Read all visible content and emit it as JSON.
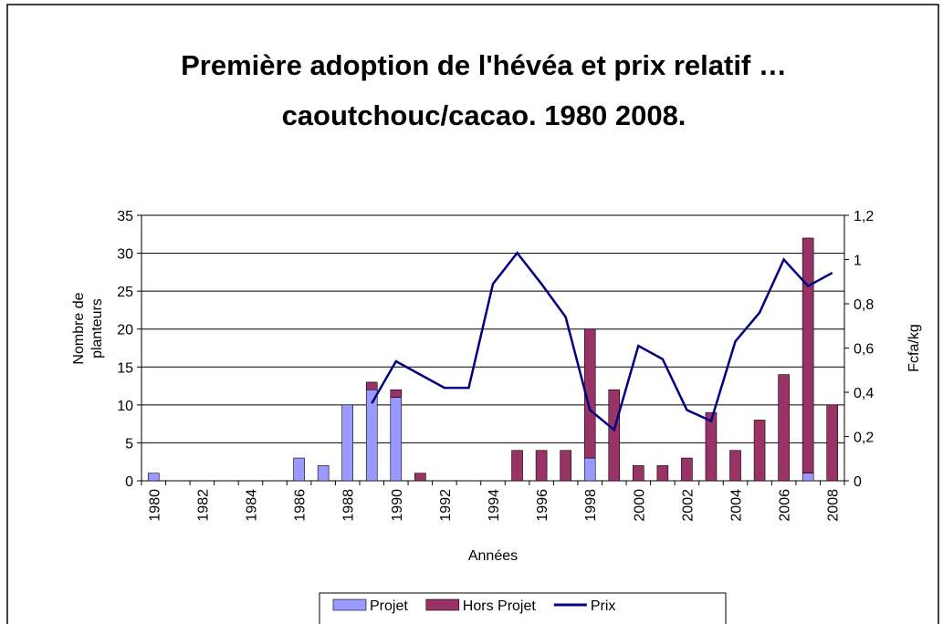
{
  "chart_data": {
    "type": "bar",
    "title": "Première adoption de l'hévéa et prix relatif … caoutchouc/cacao. 1980 2008.",
    "x_label": "Années",
    "y_label": "Nombre de planteurs",
    "y2_label": "Fcfa/kg",
    "categories": [
      1980,
      null,
      1982,
      null,
      1984,
      null,
      1986,
      null,
      1988,
      null,
      1990,
      null,
      1992,
      null,
      1994,
      null,
      1996,
      null,
      1998,
      null,
      2000,
      null,
      2002,
      null,
      2004,
      null,
      2006,
      null,
      2008
    ],
    "series": [
      {
        "name": "Projet",
        "color": "#9999ff",
        "values": [
          1,
          0,
          0,
          0,
          0,
          0,
          3,
          2,
          10,
          12,
          11,
          0,
          0,
          0,
          0,
          0,
          0,
          0,
          3,
          0,
          0,
          0,
          0,
          0,
          0,
          0,
          0,
          1,
          0
        ]
      },
      {
        "name": "Hors Projet",
        "color": "#993366",
        "values": [
          0,
          0,
          0,
          0,
          0,
          0,
          0,
          0,
          0,
          1,
          1,
          1,
          0,
          0,
          0,
          4,
          4,
          4,
          17,
          12,
          2,
          2,
          3,
          9,
          4,
          8,
          14,
          31,
          10
        ]
      },
      {
        "name": "Prix",
        "type": "line",
        "axis": "y2",
        "color": "#000080",
        "values": [
          null,
          null,
          null,
          null,
          null,
          null,
          null,
          null,
          null,
          0.35,
          0.54,
          0.48,
          0.42,
          0.42,
          0.89,
          1.03,
          0.89,
          0.74,
          0.32,
          0.23,
          0.61,
          0.55,
          0.32,
          0.27,
          0.63,
          0.76,
          1.0,
          0.88,
          0.94
        ]
      }
    ],
    "ylim": [
      0,
      35
    ],
    "yticks": [
      0,
      5,
      10,
      15,
      20,
      25,
      30,
      35
    ],
    "y2lim": [
      0,
      1.2
    ],
    "y2ticks": [
      0,
      {
        "value": 0.2,
        "label": "0,2"
      },
      {
        "value": 0.4,
        "label": "0,4"
      },
      {
        "value": 0.6,
        "label": "0,6"
      },
      {
        "value": 0.8,
        "label": "0,8"
      },
      1,
      {
        "value": 1.2,
        "label": "1,2"
      }
    ],
    "grid": true,
    "stacked": true,
    "legend": "bottom"
  }
}
